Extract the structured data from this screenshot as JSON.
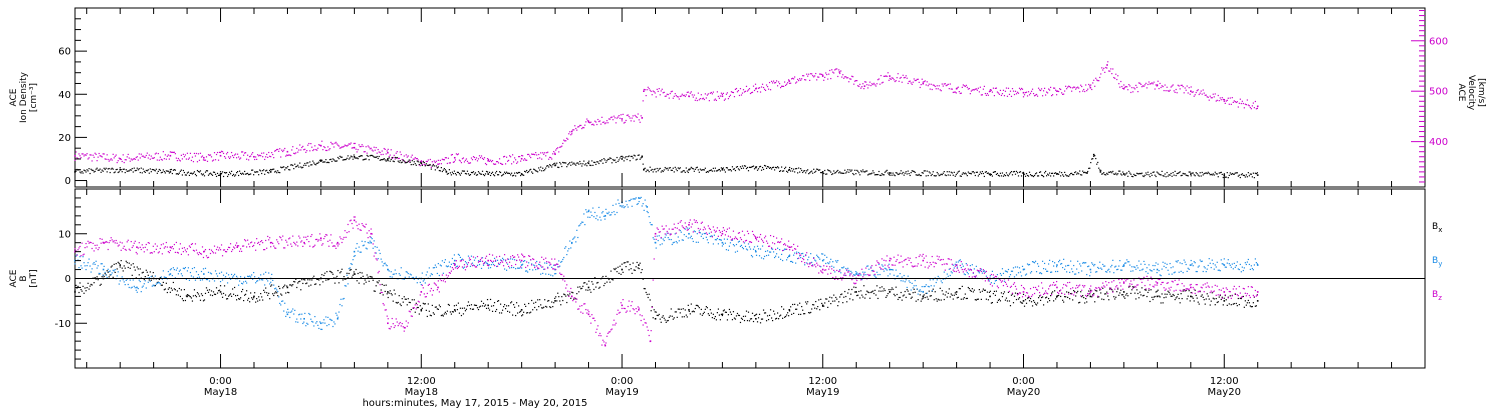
{
  "chart_data": [
    {
      "type": "scatter",
      "panel": "top",
      "left_axis": {
        "label_lines": [
          "ACE",
          "Ion Density",
          "[cm⁻³]"
        ],
        "ylim": [
          -3,
          80
        ],
        "ticks": [
          0,
          20,
          40,
          60
        ],
        "tick_labels": [
          "0",
          "20",
          "40",
          "60"
        ]
      },
      "right_axis": {
        "label_lines": [
          "ACE",
          "Velocity",
          "[km/s]"
        ],
        "ylim": [
          310,
          665
        ],
        "ticks": [
          400,
          500,
          600
        ],
        "tick_labels": [
          "400",
          "500",
          "600"
        ],
        "color": "#cc00cc"
      },
      "series": [
        {
          "axis": "left",
          "color": "#000000",
          "points": [
            [
              -8.7,
              4
            ],
            [
              -6,
              5
            ],
            [
              -3,
              4
            ],
            [
              0,
              3
            ],
            [
              3,
              4
            ],
            [
              6,
              9
            ],
            [
              8,
              11
            ],
            [
              10,
              10
            ],
            [
              12,
              8
            ],
            [
              13.5,
              4
            ],
            [
              16,
              3
            ],
            [
              18,
              3
            ],
            [
              20,
              7
            ],
            [
              22,
              8
            ],
            [
              24,
              10
            ],
            [
              25.2,
              11
            ],
            [
              25.3,
              5
            ],
            [
              28,
              5
            ],
            [
              30,
              5
            ],
            [
              32,
              6
            ],
            [
              34,
              5
            ],
            [
              36,
              4
            ],
            [
              40,
              3.5
            ],
            [
              46,
              3
            ],
            [
              50,
              3
            ],
            [
              51.8,
              3.5
            ],
            [
              52.2,
              12
            ],
            [
              52.6,
              4
            ],
            [
              54,
              3
            ],
            [
              58,
              3
            ],
            [
              60,
              2.5
            ],
            [
              62,
              2.5
            ]
          ]
        },
        {
          "axis": "right",
          "color": "#cc00cc",
          "points": [
            [
              -8.7,
              372
            ],
            [
              -6,
              366
            ],
            [
              -3,
              372
            ],
            [
              -1,
              368
            ],
            [
              0,
              372
            ],
            [
              2,
              370
            ],
            [
              4,
              380
            ],
            [
              6,
              392
            ],
            [
              8,
              388
            ],
            [
              10,
              378
            ],
            [
              12,
              360
            ],
            [
              13,
              355
            ],
            [
              14,
              368
            ],
            [
              16,
              362
            ],
            [
              18,
              366
            ],
            [
              20,
              375
            ],
            [
              21,
              420
            ],
            [
              22,
              440
            ],
            [
              24,
              445
            ],
            [
              25.2,
              447
            ],
            [
              25.3,
              500
            ],
            [
              28,
              490
            ],
            [
              30,
              490
            ],
            [
              32,
              505
            ],
            [
              34,
              520
            ],
            [
              36,
              530
            ],
            [
              37,
              538
            ],
            [
              38.5,
              510
            ],
            [
              40,
              530
            ],
            [
              42,
              515
            ],
            [
              44,
              505
            ],
            [
              46,
              500
            ],
            [
              48,
              497
            ],
            [
              50,
              500
            ],
            [
              52,
              507
            ],
            [
              53,
              552
            ],
            [
              54,
              505
            ],
            [
              56,
              512
            ],
            [
              58,
              500
            ],
            [
              60,
              483
            ],
            [
              62,
              470
            ]
          ]
        }
      ]
    },
    {
      "type": "scatter",
      "panel": "bottom",
      "left_axis": {
        "label_lines": [
          "ACE",
          "B",
          "[nT]"
        ],
        "ylim": [
          -20,
          20
        ],
        "ticks": [
          -10,
          0,
          10
        ],
        "tick_labels": [
          "-10",
          "0",
          "10"
        ]
      },
      "zero_line": true,
      "series": [
        {
          "name": "Bx",
          "color": "#000000",
          "points": [
            [
              -8.7,
              -3
            ],
            [
              -7,
              0
            ],
            [
              -6,
              3
            ],
            [
              -4,
              0
            ],
            [
              -2,
              -4
            ],
            [
              0,
              -3
            ],
            [
              2,
              -4
            ],
            [
              4,
              -2
            ],
            [
              6,
              0
            ],
            [
              8,
              1
            ],
            [
              10,
              -3
            ],
            [
              12,
              -7
            ],
            [
              14,
              -7
            ],
            [
              16,
              -6
            ],
            [
              18,
              -7
            ],
            [
              20,
              -5
            ],
            [
              22,
              -2
            ],
            [
              24,
              2
            ],
            [
              25,
              3
            ],
            [
              26,
              -9
            ],
            [
              28,
              -7
            ],
            [
              30,
              -8
            ],
            [
              32,
              -9
            ],
            [
              34,
              -7
            ],
            [
              36,
              -6
            ],
            [
              38,
              -3
            ],
            [
              40,
              -3
            ],
            [
              42,
              -4
            ],
            [
              44,
              -3
            ],
            [
              46,
              -4
            ],
            [
              48,
              -5
            ],
            [
              50,
              -4
            ],
            [
              52,
              -4
            ],
            [
              54,
              -3
            ],
            [
              56,
              -4
            ],
            [
              58,
              -4
            ],
            [
              60,
              -5
            ],
            [
              62,
              -5
            ]
          ]
        },
        {
          "name": "By",
          "color": "#1a8be6",
          "points": [
            [
              -8.7,
              4
            ],
            [
              -7,
              2
            ],
            [
              -5,
              -2
            ],
            [
              -3,
              1
            ],
            [
              -1,
              1
            ],
            [
              1,
              0
            ],
            [
              3,
              0
            ],
            [
              4,
              -8
            ],
            [
              5,
              -9
            ],
            [
              6,
              -10
            ],
            [
              7,
              -9
            ],
            [
              8,
              6
            ],
            [
              9,
              8
            ],
            [
              10,
              2
            ],
            [
              12,
              0
            ],
            [
              14,
              4
            ],
            [
              16,
              3
            ],
            [
              18,
              3
            ],
            [
              20,
              2
            ],
            [
              21,
              8
            ],
            [
              22,
              15
            ],
            [
              23,
              14
            ],
            [
              24,
              17
            ],
            [
              25,
              18
            ],
            [
              25.5,
              16
            ],
            [
              26,
              8
            ],
            [
              28,
              10
            ],
            [
              30,
              8
            ],
            [
              32,
              6
            ],
            [
              34,
              5
            ],
            [
              36,
              4
            ],
            [
              38,
              1
            ],
            [
              40,
              2
            ],
            [
              42,
              -3
            ],
            [
              44,
              3
            ],
            [
              46,
              0
            ],
            [
              48,
              2
            ],
            [
              50,
              3
            ],
            [
              52,
              2
            ],
            [
              54,
              3
            ],
            [
              56,
              2
            ],
            [
              58,
              3
            ],
            [
              60,
              3
            ],
            [
              62,
              3
            ]
          ]
        },
        {
          "name": "Bz",
          "color": "#cc00cc",
          "points": [
            [
              -8.7,
              6
            ],
            [
              -7,
              8
            ],
            [
              -5,
              7
            ],
            [
              -3,
              7
            ],
            [
              -1,
              6
            ],
            [
              1,
              7
            ],
            [
              3,
              8
            ],
            [
              5,
              8
            ],
            [
              6,
              9
            ],
            [
              7,
              8
            ],
            [
              8,
              13
            ],
            [
              9,
              10
            ],
            [
              10,
              -10
            ],
            [
              11,
              -11
            ],
            [
              12,
              -3
            ],
            [
              13,
              -2
            ],
            [
              14,
              3
            ],
            [
              16,
              4
            ],
            [
              18,
              4
            ],
            [
              20,
              3
            ],
            [
              21,
              -4
            ],
            [
              22,
              -8
            ],
            [
              23,
              -15
            ],
            [
              24,
              -6
            ],
            [
              25,
              -7
            ],
            [
              25.7,
              -14
            ],
            [
              26,
              10
            ],
            [
              28,
              12
            ],
            [
              30,
              10
            ],
            [
              32,
              9
            ],
            [
              34,
              7
            ],
            [
              36,
              2
            ],
            [
              38,
              0
            ],
            [
              40,
              4
            ],
            [
              42,
              4
            ],
            [
              44,
              3
            ],
            [
              46,
              0
            ],
            [
              48,
              -3
            ],
            [
              50,
              -2
            ],
            [
              52,
              -3
            ],
            [
              54,
              -1
            ],
            [
              56,
              -1
            ],
            [
              58,
              -2
            ],
            [
              60,
              -3
            ],
            [
              62,
              -3
            ]
          ]
        }
      ],
      "legend": {
        "placement": "right",
        "entries": [
          {
            "main": "B",
            "sub": "x",
            "color": "#000000"
          },
          {
            "main": "B",
            "sub": "y",
            "color": "#1a8be6"
          },
          {
            "main": "B",
            "sub": "z",
            "color": "#cc00cc"
          }
        ]
      }
    }
  ],
  "time_axis": {
    "xlim_hours": [
      -8.7,
      72
    ],
    "major_ticks": [
      {
        "t": 0,
        "line1": "0:00",
        "line2": "May18"
      },
      {
        "t": 12,
        "line1": "12:00",
        "line2": "May18"
      },
      {
        "t": 24,
        "line1": "0:00",
        "line2": "May19"
      },
      {
        "t": 36,
        "line1": "12:00",
        "line2": "May19"
      },
      {
        "t": 48,
        "line1": "0:00",
        "line2": "May20"
      },
      {
        "t": 60,
        "line1": "12:00",
        "line2": "May20"
      }
    ],
    "minor_step_hours": 2,
    "title": "hours:minutes, May 17, 2015 - May 20, 2015"
  }
}
